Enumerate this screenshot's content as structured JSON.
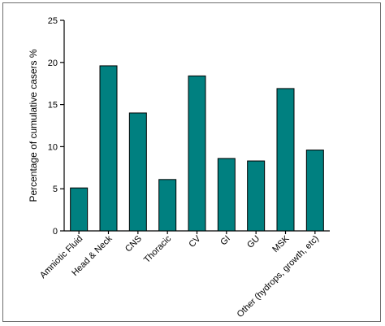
{
  "chart_data": {
    "type": "bar",
    "ylabel": "Percentage of cumulative casers %",
    "xlabel": "",
    "title": "",
    "ylim": [
      0,
      25
    ],
    "yticks": [
      0,
      5,
      10,
      15,
      20,
      25
    ],
    "categories": [
      "Amniotic Fluid",
      "Head & Neck",
      "CNS",
      "Thoracic",
      "CV",
      "GI",
      "GU",
      "MSK",
      "Other (hydrops, growth, etc)"
    ],
    "values": [
      5.1,
      19.6,
      14.0,
      6.1,
      18.4,
      8.6,
      8.3,
      16.9,
      9.6
    ],
    "bar_color": "#008080",
    "bar_stroke": "#000000",
    "grid": false,
    "legend": "none"
  }
}
